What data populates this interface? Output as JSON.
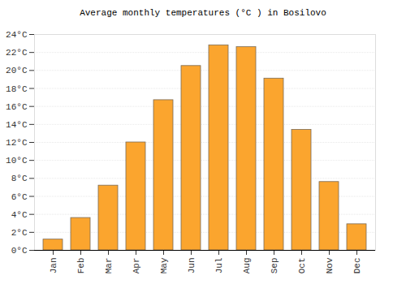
{
  "chart_data": {
    "type": "bar",
    "title": "Average monthly temperatures (°C ) in Bosilovo",
    "categories": [
      "Jan",
      "Feb",
      "Mar",
      "Apr",
      "May",
      "Jun",
      "Jul",
      "Aug",
      "Sep",
      "Oct",
      "Nov",
      "Dec"
    ],
    "values": [
      1.2,
      3.6,
      7.2,
      12.0,
      16.7,
      20.5,
      22.8,
      22.6,
      19.1,
      13.4,
      7.6,
      2.9
    ],
    "color": "#fba52e",
    "ylim": [
      0,
      24
    ],
    "yticks": [
      {
        "value": 0,
        "label": "0°C"
      },
      {
        "value": 2,
        "label": "2°C"
      },
      {
        "value": 4,
        "label": "4°C"
      },
      {
        "value": 6,
        "label": "6°C"
      },
      {
        "value": 8,
        "label": "8°C"
      },
      {
        "value": 10,
        "label": "10°C"
      },
      {
        "value": 12,
        "label": "12°C"
      },
      {
        "value": 14,
        "label": "14°C"
      },
      {
        "value": 16,
        "label": "16°C"
      },
      {
        "value": 18,
        "label": "18°C"
      },
      {
        "value": 20,
        "label": "20°C"
      },
      {
        "value": 22,
        "label": "22°C"
      },
      {
        "value": 24,
        "label": "24°C"
      }
    ],
    "grid": true
  }
}
